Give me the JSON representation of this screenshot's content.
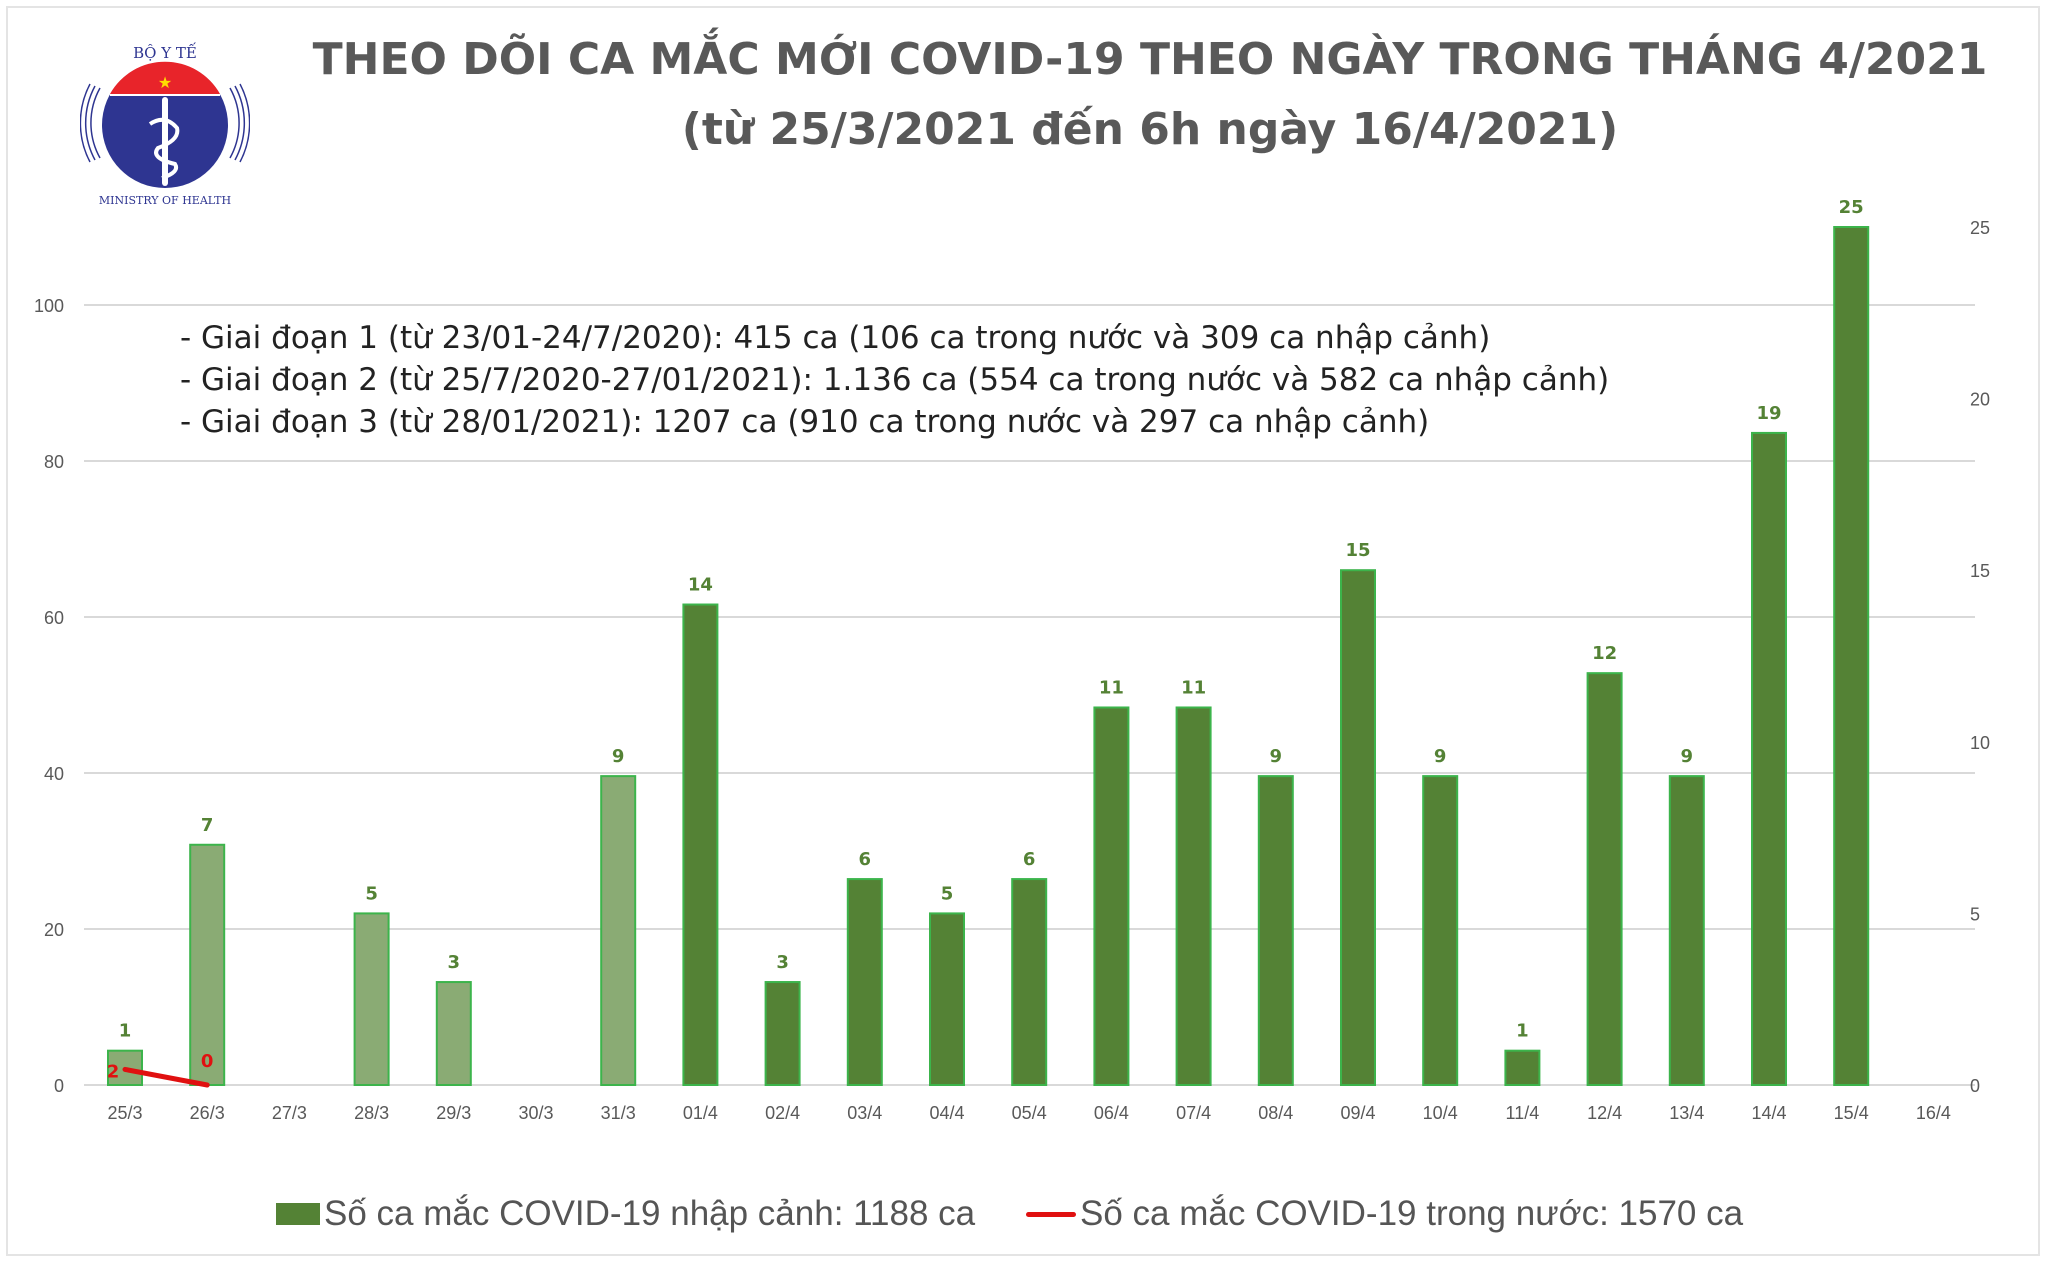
{
  "title_line1": "THEO DÕI CA MẮC MỚI COVID-19 THEO NGÀY TRONG THÁNG 4/2021",
  "title_line2": "(từ 25/3/2021 đến 6h ngày 16/4/2021)",
  "logo": {
    "top_text": "BỘ Y TẾ",
    "bottom_text": "MINISTRY OF HEALTH"
  },
  "notes": [
    "- Giai đoạn 1 (từ 23/01-24/7/2020): 415 ca (106 ca trong nước và 309 ca nhập cảnh)",
    "- Giai đoạn 2 (từ 25/7/2020-27/01/2021): 1.136 ca (554 ca trong nước và 582 ca nhập cảnh)",
    "- Giai đoạn 3 (từ 28/01/2021): 1207 ca (910 ca trong nước và 297 ca nhập cảnh)"
  ],
  "legend": {
    "bar": "Số ca mắc COVID-19 nhập cảnh: 1188 ca",
    "line": "Số ca mắc COVID-19 trong nước: 1570 ca"
  },
  "colors": {
    "bar_march": "#8aab74",
    "bar_april": "#548235",
    "bar_border": "#3cb44b",
    "line": "#e01010",
    "label": "#548235"
  },
  "chart_data": {
    "type": "bar",
    "categories": [
      "25/3",
      "26/3",
      "27/3",
      "28/3",
      "29/3",
      "30/3",
      "31/3",
      "01/4",
      "02/4",
      "03/4",
      "04/4",
      "05/4",
      "06/4",
      "07/4",
      "08/4",
      "09/4",
      "10/4",
      "11/4",
      "12/4",
      "13/4",
      "14/4",
      "15/4",
      "16/4"
    ],
    "series": [
      {
        "name": "Số ca mắc COVID-19 nhập cảnh: 1188 ca",
        "type": "bar",
        "axis": "right",
        "values": [
          1,
          7,
          null,
          5,
          3,
          null,
          9,
          14,
          3,
          6,
          5,
          6,
          11,
          11,
          9,
          15,
          9,
          1,
          12,
          9,
          19,
          25,
          null
        ]
      },
      {
        "name": "Số ca mắc COVID-19 trong nước: 1570 ca",
        "type": "line",
        "axis": "left",
        "values": [
          2,
          0,
          null,
          null,
          null,
          null,
          null,
          null,
          null,
          null,
          null,
          null,
          null,
          null,
          null,
          null,
          null,
          null,
          null,
          null,
          null,
          null,
          null
        ]
      }
    ],
    "left_axis": {
      "ticks": [
        "0",
        "20",
        "40",
        "60",
        "80",
        "100"
      ],
      "range": [
        0,
        100
      ]
    },
    "right_axis": {
      "ticks": [
        "0",
        "5",
        "10",
        "15",
        "20",
        "25"
      ],
      "range": [
        0,
        25
      ]
    },
    "grid": true,
    "legend_position": "bottom"
  }
}
